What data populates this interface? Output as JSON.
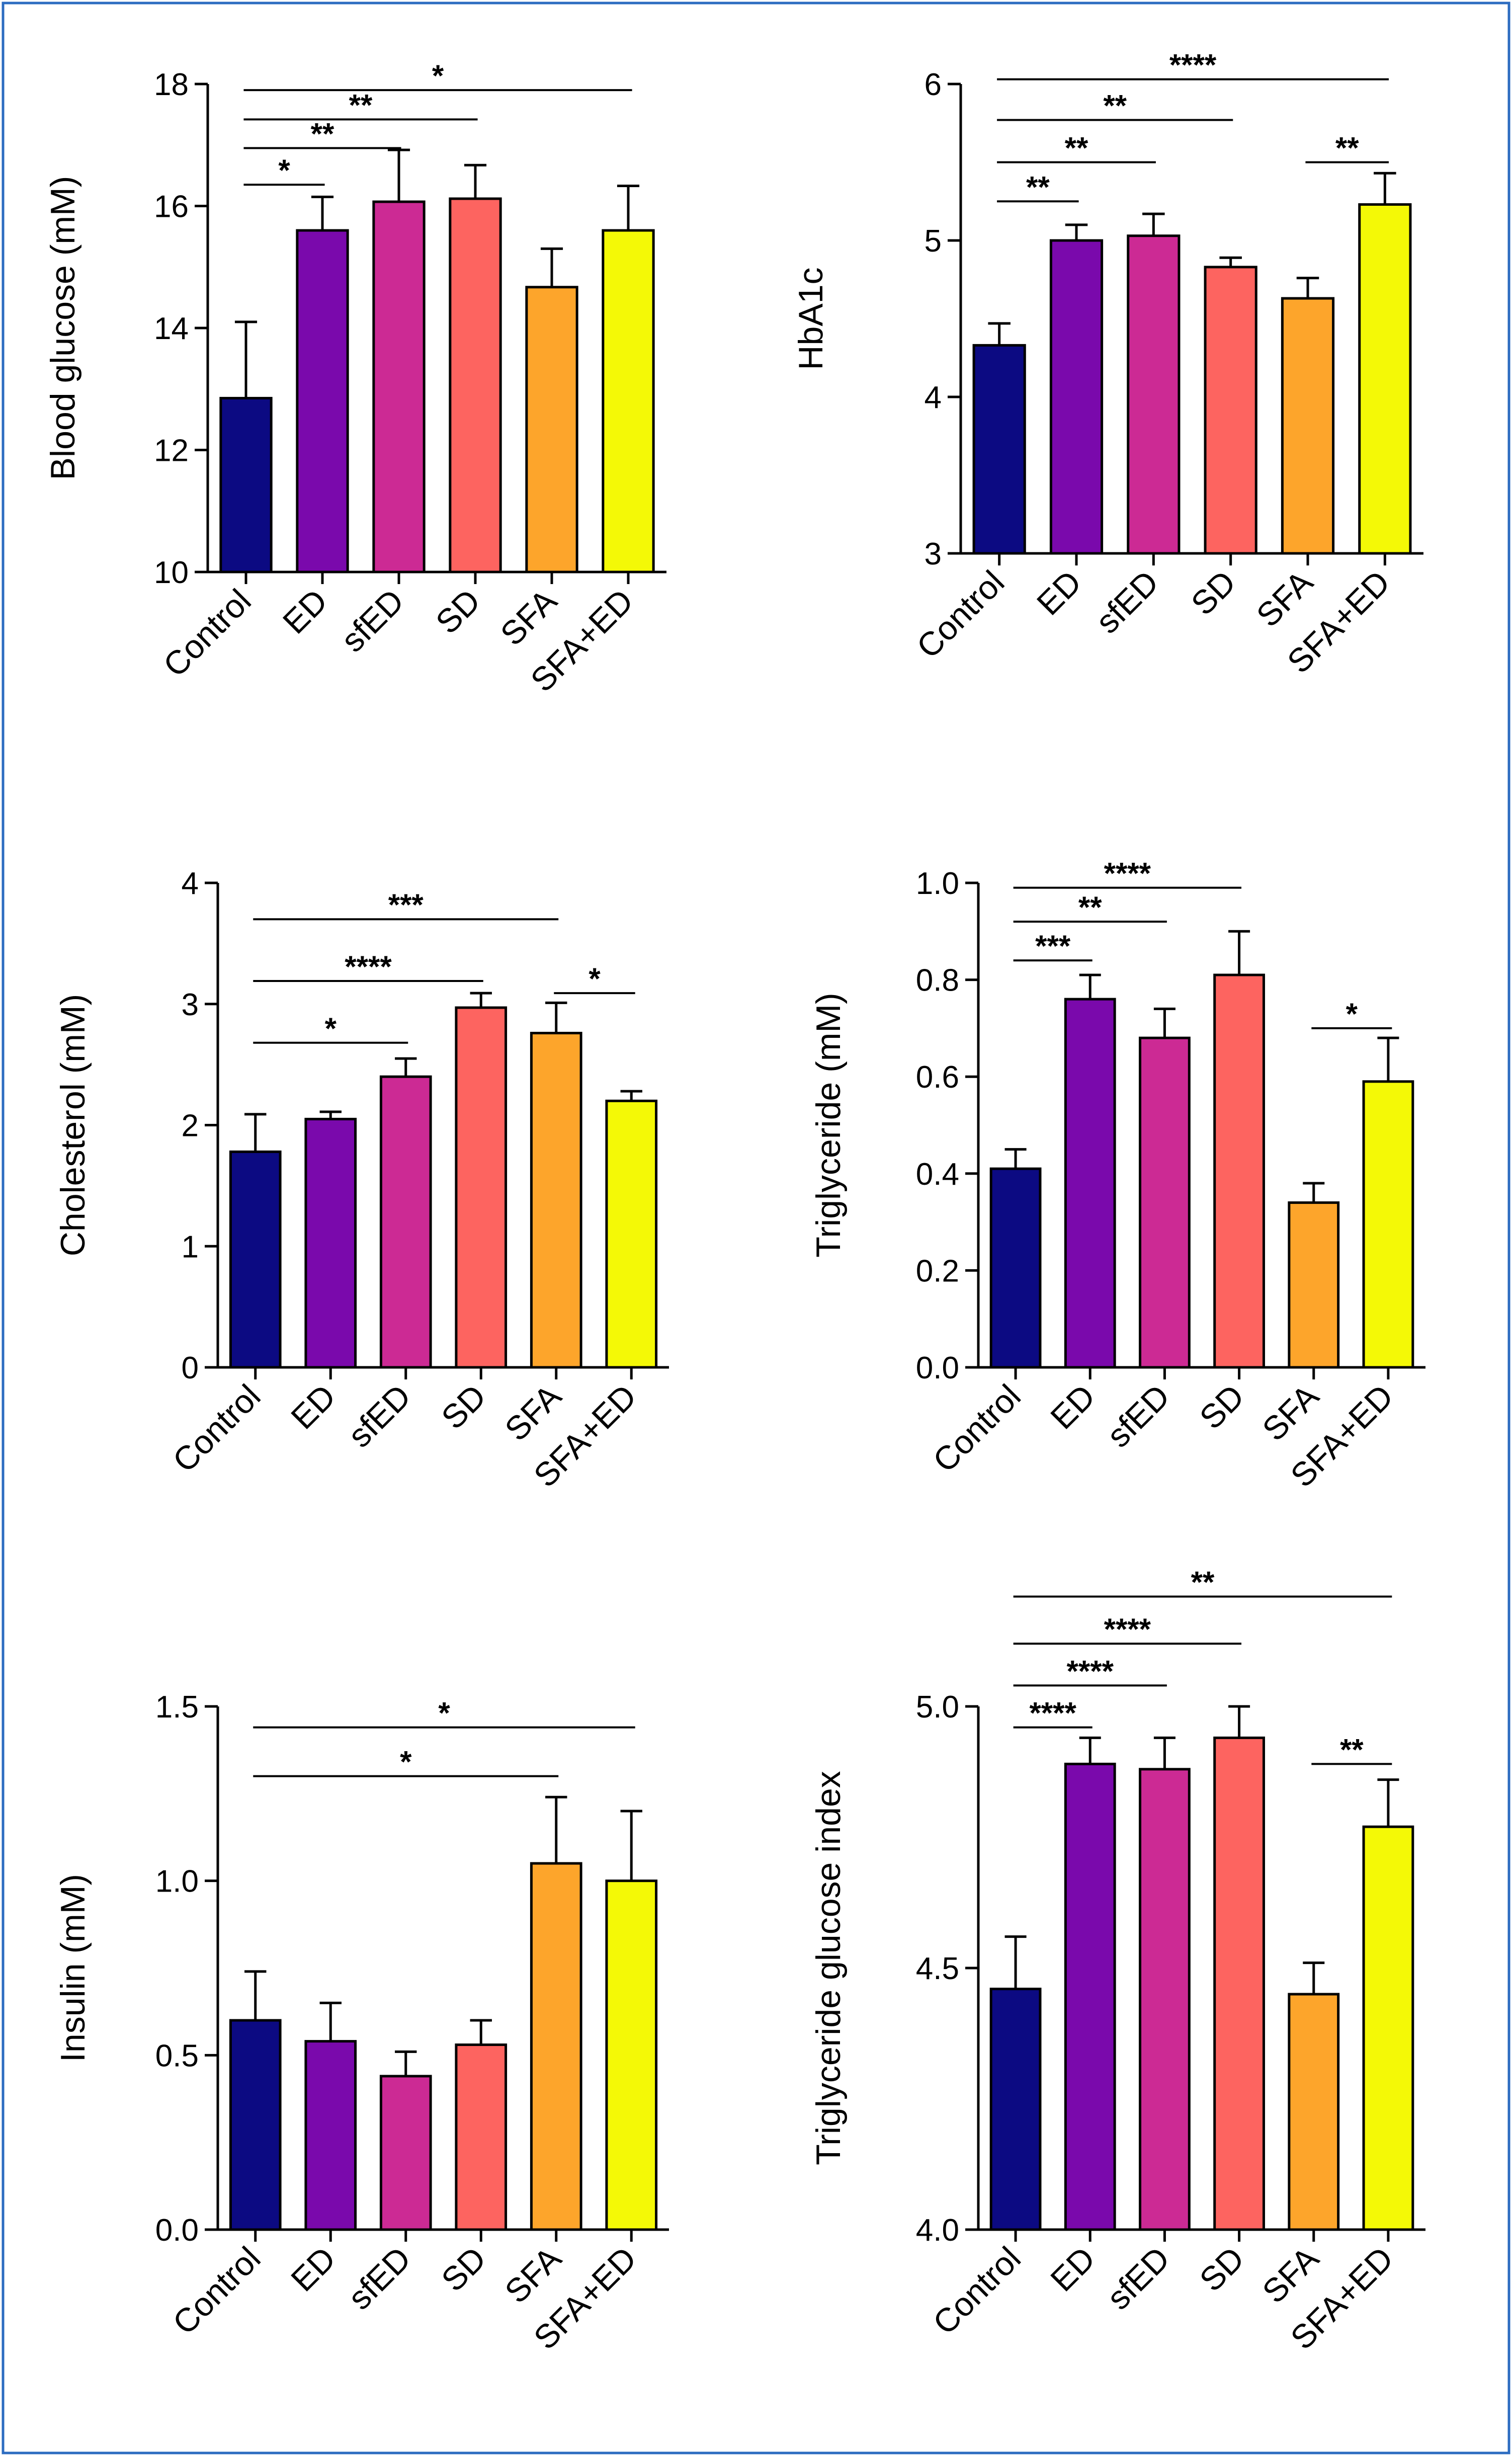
{
  "categories": [
    "Control",
    "ED",
    "sfED",
    "SD",
    "SFA",
    "SFA+ED"
  ],
  "colors": [
    "#0c0a82",
    "#7a09ac",
    "#cc2a94",
    "#fd6460",
    "#fda52b",
    "#f4f906"
  ],
  "frame_color": "#2c6cc0",
  "chart_data": [
    {
      "type": "bar",
      "ylabel": "Blood glucose (mM)",
      "ylim": [
        10,
        18
      ],
      "yticks": [
        "10",
        "12",
        "14",
        "16",
        "18"
      ],
      "values": [
        12.85,
        15.6,
        16.07,
        16.12,
        14.67,
        15.6
      ],
      "errors": [
        1.25,
        0.55,
        0.85,
        0.55,
        0.63,
        0.73
      ],
      "brackets": [
        {
          "from": 0,
          "to": 1,
          "y": 16.35,
          "label": "*"
        },
        {
          "from": 0,
          "to": 2,
          "y": 16.95,
          "label": "**"
        },
        {
          "from": 0,
          "to": 3,
          "y": 17.42,
          "label": "**"
        },
        {
          "from": 0,
          "to": 5,
          "y": 17.9,
          "label": "*"
        }
      ]
    },
    {
      "type": "bar",
      "ylabel": "HbA1c",
      "ylim": [
        3,
        6
      ],
      "yticks": [
        "3",
        "4",
        "5",
        "6"
      ],
      "values": [
        4.33,
        5.0,
        5.03,
        4.83,
        4.63,
        5.23
      ],
      "errors": [
        0.14,
        0.1,
        0.14,
        0.06,
        0.13,
        0.2
      ],
      "brackets": [
        {
          "from": 0,
          "to": 1,
          "y": 5.25,
          "label": "**"
        },
        {
          "from": 0,
          "to": 2,
          "y": 5.5,
          "label": "**"
        },
        {
          "from": 0,
          "to": 3,
          "y": 5.77,
          "label": "**"
        },
        {
          "from": 4,
          "to": 5,
          "y": 5.5,
          "label": "**"
        },
        {
          "from": 0,
          "to": 5,
          "y": 6.03,
          "label": "****"
        }
      ]
    },
    {
      "type": "bar",
      "ylabel": "Cholesterol (mM)",
      "ylim": [
        0,
        4
      ],
      "yticks": [
        "0",
        "1",
        "2",
        "3",
        "4"
      ],
      "values": [
        1.78,
        2.05,
        2.4,
        2.97,
        2.76,
        2.2
      ],
      "errors": [
        0.31,
        0.06,
        0.15,
        0.12,
        0.25,
        0.08
      ],
      "brackets": [
        {
          "from": 0,
          "to": 2,
          "y": 2.68,
          "label": "*"
        },
        {
          "from": 0,
          "to": 3,
          "y": 3.19,
          "label": "****"
        },
        {
          "from": 4,
          "to": 5,
          "y": 3.09,
          "label": "*"
        },
        {
          "from": 0,
          "to": 4,
          "y": 3.7,
          "label": "***"
        }
      ]
    },
    {
      "type": "bar",
      "ylabel": "Triglyceride (mM)",
      "ylim": [
        0,
        1
      ],
      "yticks": [
        "0.0",
        "0.2",
        "0.4",
        "0.6",
        "0.8",
        "1.0"
      ],
      "values": [
        0.41,
        0.76,
        0.68,
        0.81,
        0.34,
        0.59
      ],
      "errors": [
        0.04,
        0.05,
        0.06,
        0.09,
        0.04,
        0.09
      ],
      "brackets": [
        {
          "from": 0,
          "to": 1,
          "y": 0.84,
          "label": "***"
        },
        {
          "from": 0,
          "to": 2,
          "y": 0.92,
          "label": "**"
        },
        {
          "from": 0,
          "to": 3,
          "y": 0.99,
          "label": "****"
        },
        {
          "from": 4,
          "to": 5,
          "y": 0.7,
          "label": "*"
        }
      ]
    },
    {
      "type": "bar",
      "ylabel": "Insulin (mM)",
      "ylim": [
        0,
        1.5
      ],
      "yticks": [
        "0.0",
        "0.5",
        "1.0",
        "1.5"
      ],
      "values": [
        0.6,
        0.54,
        0.44,
        0.53,
        1.05,
        1.0
      ],
      "errors": [
        0.14,
        0.11,
        0.07,
        0.07,
        0.19,
        0.2
      ],
      "brackets": [
        {
          "from": 0,
          "to": 4,
          "y": 1.3,
          "label": "*"
        },
        {
          "from": 0,
          "to": 5,
          "y": 1.44,
          "label": "*"
        }
      ]
    },
    {
      "type": "bar",
      "ylabel": "Triglyceride glucose index",
      "ylim": [
        4.0,
        5.0
      ],
      "yticks": [
        "4.0",
        "4.5",
        "5.0"
      ],
      "values": [
        4.46,
        4.89,
        4.88,
        4.94,
        4.45,
        4.77
      ],
      "errors": [
        0.1,
        0.05,
        0.06,
        0.06,
        0.06,
        0.09
      ],
      "brackets": [
        {
          "from": 0,
          "to": 1,
          "y": 4.96,
          "label": "****"
        },
        {
          "from": 0,
          "to": 2,
          "y": 5.04,
          "label": "****"
        },
        {
          "from": 0,
          "to": 3,
          "y": 5.12,
          "label": "****"
        },
        {
          "from": 4,
          "to": 5,
          "y": 4.89,
          "label": "**"
        },
        {
          "from": 0,
          "to": 5,
          "y": 5.21,
          "label": "**"
        }
      ]
    }
  ]
}
